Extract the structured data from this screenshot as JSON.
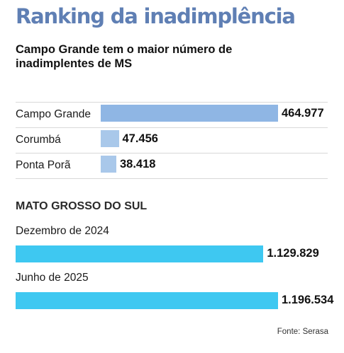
{
  "title": "Ranking da inadimplência",
  "subtitle": "Campo Grande tem o maior número de inadimplentes de MS",
  "section_title": "MATO GROSSO DO SUL",
  "source": "Fonte: Serasa",
  "colors": {
    "title": "#5f7fb4",
    "municipality_bar_top": "#8fb6e4",
    "municipality_bar": "#a9c8ea",
    "state_bar": "#3ec8f1"
  },
  "chart_data": [
    {
      "type": "bar",
      "orientation": "horizontal",
      "title": "Campo Grande tem o maior número de inadimplentes de MS",
      "categories": [
        "Campo Grande",
        "Corumbá",
        "Ponta Porã"
      ],
      "values": [
        464977,
        47456,
        38418
      ],
      "value_labels": [
        "464.977",
        "47.456",
        "38.418"
      ],
      "grid": false
    },
    {
      "type": "bar",
      "orientation": "horizontal",
      "title": "MATO GROSSO DO SUL",
      "categories": [
        "Dezembro de 2024",
        "Junho de 2025"
      ],
      "values": [
        1129829,
        1196534
      ],
      "value_labels": [
        "1.129.829",
        "1.196.534"
      ],
      "grid": false
    }
  ]
}
